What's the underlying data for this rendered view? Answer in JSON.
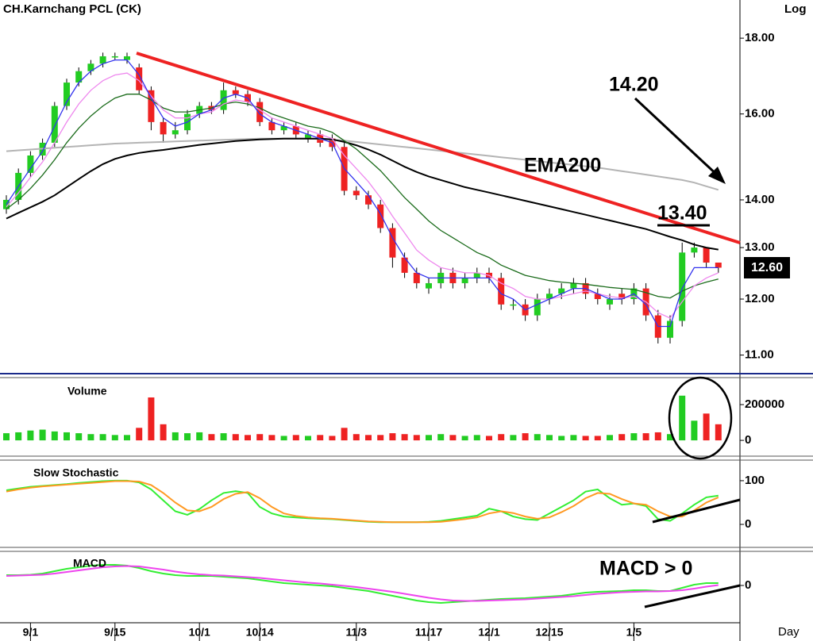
{
  "chart_data": [
    {
      "type": "candlestick",
      "title": "CH.Karnchang PCL (CK)",
      "yscale_label": "Log",
      "log_y": true,
      "ylim": [
        10.7,
        19.1
      ],
      "yticks": [
        {
          "value": 11,
          "label": "11.00"
        },
        {
          "value": 12,
          "label": "12.00"
        },
        {
          "value": 13,
          "label": "13.00"
        },
        {
          "value": 14,
          "label": "14.00"
        },
        {
          "value": 16,
          "label": "16.00"
        },
        {
          "value": 18,
          "label": "18.00"
        }
      ],
      "categories": [
        null,
        null,
        "9/1",
        null,
        null,
        null,
        null,
        null,
        null,
        "9/15",
        null,
        null,
        null,
        null,
        null,
        null,
        "10/1",
        null,
        null,
        null,
        null,
        "10/14",
        null,
        null,
        null,
        null,
        null,
        null,
        null,
        "11/3",
        null,
        null,
        null,
        null,
        null,
        "11/17",
        null,
        null,
        null,
        null,
        "12/1",
        null,
        null,
        null,
        null,
        "12/15",
        null,
        null,
        null,
        null,
        null,
        null,
        "1/5",
        null,
        null,
        null,
        null,
        null,
        null,
        null
      ],
      "up_color": "#22cc22",
      "down_color": "#ee2222",
      "open": [
        13.8,
        14.0,
        14.6,
        15.0,
        15.3,
        16.2,
        16.8,
        17.1,
        17.3,
        17.5,
        17.4,
        17.2,
        16.6,
        15.8,
        15.5,
        15.6,
        16.0,
        16.2,
        16.1,
        16.6,
        16.5,
        16.3,
        15.8,
        15.6,
        15.7,
        15.4,
        15.5,
        15.4,
        15.2,
        14.2,
        14.1,
        13.9,
        13.4,
        12.8,
        12.5,
        12.2,
        12.3,
        12.5,
        12.3,
        12.4,
        12.5,
        12.4,
        11.9,
        11.9,
        11.7,
        12.0,
        12.1,
        12.2,
        12.3,
        12.1,
        11.9,
        12.1,
        12.0,
        12.2,
        11.7,
        11.3,
        11.6,
        12.9,
        13.0,
        12.7
      ],
      "high": [
        14.1,
        14.7,
        15.1,
        15.4,
        16.3,
        16.9,
        17.2,
        17.4,
        17.6,
        17.6,
        17.6,
        17.3,
        16.7,
        15.9,
        15.8,
        16.1,
        16.3,
        16.3,
        16.8,
        16.7,
        16.6,
        16.4,
        15.9,
        15.8,
        15.8,
        15.6,
        15.6,
        15.5,
        15.3,
        14.3,
        14.2,
        14.0,
        13.5,
        12.9,
        12.6,
        12.4,
        12.6,
        12.6,
        12.5,
        12.6,
        12.6,
        12.5,
        12.0,
        12.0,
        12.1,
        12.2,
        12.3,
        12.4,
        12.4,
        12.2,
        12.1,
        12.2,
        12.3,
        12.3,
        11.8,
        11.7,
        13.1,
        13.1,
        13.0,
        12.7
      ],
      "low": [
        13.7,
        13.9,
        14.5,
        14.9,
        15.2,
        16.1,
        16.7,
        17.0,
        17.2,
        17.4,
        17.3,
        16.5,
        15.6,
        15.3,
        15.4,
        15.5,
        15.9,
        16.0,
        16.0,
        16.4,
        16.2,
        15.7,
        15.5,
        15.5,
        15.4,
        15.3,
        15.2,
        15.1,
        14.1,
        14.0,
        13.8,
        13.3,
        12.6,
        12.4,
        12.2,
        12.1,
        12.2,
        12.2,
        12.2,
        12.3,
        12.3,
        11.8,
        11.8,
        11.6,
        11.6,
        11.9,
        12.0,
        12.1,
        12.0,
        11.9,
        11.8,
        11.9,
        11.9,
        11.6,
        11.2,
        11.2,
        11.5,
        12.8,
        12.6,
        12.5
      ],
      "close": [
        14.0,
        14.6,
        15.0,
        15.3,
        16.2,
        16.8,
        17.1,
        17.3,
        17.5,
        17.5,
        17.5,
        16.6,
        15.8,
        15.5,
        15.6,
        16.0,
        16.2,
        16.1,
        16.6,
        16.5,
        16.3,
        15.8,
        15.6,
        15.7,
        15.5,
        15.5,
        15.3,
        15.2,
        14.2,
        14.1,
        13.9,
        13.4,
        12.8,
        12.5,
        12.3,
        12.3,
        12.5,
        12.3,
        12.4,
        12.5,
        12.4,
        11.9,
        11.9,
        11.7,
        12.0,
        12.1,
        12.2,
        12.3,
        12.1,
        12.0,
        12.0,
        12.0,
        12.2,
        11.7,
        11.3,
        11.6,
        12.9,
        13.0,
        12.7,
        12.6
      ],
      "series": [
        {
          "name": "EMA200",
          "color": "#b4b4b4",
          "values": [
            15.1,
            15.12,
            15.14,
            15.16,
            15.18,
            15.2,
            15.22,
            15.24,
            15.26,
            15.28,
            15.29,
            15.3,
            15.31,
            15.32,
            15.33,
            15.34,
            15.35,
            15.36,
            15.37,
            15.38,
            15.39,
            15.4,
            15.4,
            15.4,
            15.4,
            15.4,
            15.39,
            15.37,
            15.35,
            15.32,
            15.29,
            15.26,
            15.23,
            15.2,
            15.17,
            15.14,
            15.11,
            15.08,
            15.05,
            15.02,
            14.99,
            14.96,
            14.93,
            14.9,
            14.87,
            14.84,
            14.81,
            14.78,
            14.75,
            14.72,
            14.68,
            14.64,
            14.6,
            14.56,
            14.52,
            14.48,
            14.44,
            14.38,
            14.3,
            14.22
          ]
        },
        {
          "color": "#000000",
          "values": [
            13.6,
            13.72,
            13.84,
            13.96,
            14.1,
            14.28,
            14.46,
            14.64,
            14.8,
            14.92,
            15.0,
            15.06,
            15.1,
            15.13,
            15.17,
            15.21,
            15.25,
            15.28,
            15.31,
            15.34,
            15.36,
            15.38,
            15.39,
            15.4,
            15.4,
            15.4,
            15.4,
            15.38,
            15.32,
            15.24,
            15.14,
            15.02,
            14.88,
            14.74,
            14.62,
            14.52,
            14.44,
            14.36,
            14.28,
            14.22,
            14.16,
            14.1,
            14.04,
            13.98,
            13.92,
            13.86,
            13.8,
            13.74,
            13.68,
            13.62,
            13.56,
            13.5,
            13.44,
            13.38,
            13.3,
            13.22,
            13.15,
            13.06,
            13.0,
            12.96
          ]
        },
        {
          "color": "#1a6b1a",
          "values": [
            13.8,
            14.0,
            14.25,
            14.55,
            14.9,
            15.3,
            15.65,
            15.95,
            16.2,
            16.4,
            16.5,
            16.5,
            16.35,
            16.15,
            16.05,
            16.05,
            16.1,
            16.15,
            16.25,
            16.3,
            16.25,
            16.15,
            16.0,
            15.9,
            15.8,
            15.7,
            15.65,
            15.55,
            15.35,
            15.15,
            14.9,
            14.65,
            14.35,
            14.05,
            13.8,
            13.55,
            13.35,
            13.2,
            13.05,
            12.9,
            12.8,
            12.65,
            12.55,
            12.45,
            12.4,
            12.35,
            12.32,
            12.3,
            12.28,
            12.25,
            12.22,
            12.2,
            12.18,
            12.12,
            12.05,
            12.02,
            12.15,
            12.25,
            12.32,
            12.38
          ]
        },
        {
          "color": "#ee88ee",
          "values": [
            13.85,
            14.15,
            14.5,
            14.85,
            15.3,
            15.8,
            16.25,
            16.6,
            16.85,
            17.0,
            17.05,
            16.85,
            16.45,
            16.1,
            15.9,
            15.9,
            16.0,
            16.05,
            16.25,
            16.35,
            16.3,
            16.1,
            15.9,
            15.8,
            15.7,
            15.6,
            15.5,
            15.4,
            15.0,
            14.7,
            14.4,
            14.05,
            13.65,
            13.3,
            12.95,
            12.75,
            12.6,
            12.55,
            12.5,
            12.5,
            12.45,
            12.3,
            12.2,
            12.05,
            12.0,
            12.0,
            12.05,
            12.1,
            12.15,
            12.1,
            12.05,
            12.02,
            12.05,
            11.95,
            11.75,
            11.65,
            11.95,
            12.25,
            12.4,
            12.5
          ]
        },
        {
          "color": "#3333ee",
          "values": [
            13.9,
            14.3,
            14.7,
            15.1,
            15.7,
            16.3,
            16.8,
            17.1,
            17.3,
            17.4,
            17.4,
            17.0,
            16.4,
            15.9,
            15.7,
            15.8,
            16.0,
            16.1,
            16.4,
            16.5,
            16.4,
            16.0,
            15.8,
            15.7,
            15.6,
            15.5,
            15.4,
            15.3,
            14.7,
            14.4,
            14.1,
            13.7,
            13.2,
            12.8,
            12.5,
            12.4,
            12.4,
            12.4,
            12.4,
            12.4,
            12.4,
            12.1,
            12.0,
            11.8,
            11.9,
            12.0,
            12.1,
            12.2,
            12.2,
            12.1,
            12.0,
            12.0,
            12.1,
            11.9,
            11.5,
            11.5,
            12.2,
            12.6,
            12.6,
            12.6
          ]
        }
      ],
      "annotations": [
        "14.20",
        "13.40",
        "12.60"
      ]
    },
    {
      "type": "bar",
      "title": "Volume",
      "ylim": [
        -75000,
        342000
      ],
      "yticks": [
        0,
        200000
      ],
      "values": [
        40000,
        45000,
        55000,
        60000,
        50000,
        45000,
        40000,
        35000,
        35000,
        30000,
        30000,
        70000,
        240000,
        90000,
        45000,
        40000,
        45000,
        35000,
        40000,
        35000,
        30000,
        35000,
        30000,
        25000,
        30000,
        25000,
        30000,
        25000,
        70000,
        35000,
        30000,
        30000,
        40000,
        35000,
        30000,
        30000,
        35000,
        30000,
        25000,
        30000,
        25000,
        35000,
        30000,
        40000,
        35000,
        30000,
        25000,
        30000,
        25000,
        25000,
        30000,
        35000,
        40000,
        40000,
        45000,
        35000,
        250000,
        110000,
        150000,
        90000
      ]
    },
    {
      "type": "line",
      "title": "Slow Stochastic",
      "ylim": [
        -49,
        138
      ],
      "yticks": [
        0,
        100
      ],
      "series": [
        {
          "color": "#33ee33",
          "values": [
            78,
            82,
            86,
            88,
            90,
            92,
            95,
            97,
            99,
            100,
            100,
            96,
            80,
            55,
            30,
            22,
            35,
            55,
            72,
            76,
            72,
            40,
            25,
            18,
            16,
            14,
            13,
            12,
            10,
            8,
            6,
            5,
            5,
            5,
            5,
            6,
            8,
            12,
            16,
            20,
            36,
            30,
            18,
            12,
            10,
            25,
            40,
            55,
            75,
            80,
            60,
            45,
            48,
            42,
            12,
            8,
            25,
            45,
            62,
            66
          ]
        },
        {
          "color": "#ff9922",
          "values": [
            75,
            80,
            84,
            87,
            89,
            91,
            93,
            95,
            97,
            99,
            99,
            98,
            90,
            72,
            50,
            32,
            30,
            40,
            58,
            70,
            74,
            60,
            40,
            25,
            19,
            16,
            14,
            13,
            11,
            9,
            7,
            6,
            5,
            5,
            5,
            5,
            6,
            9,
            12,
            16,
            25,
            30,
            26,
            18,
            13,
            16,
            28,
            42,
            60,
            72,
            70,
            58,
            48,
            45,
            30,
            18,
            18,
            32,
            50,
            62
          ]
        }
      ]
    },
    {
      "type": "line",
      "title": "MACD",
      "xlabel": "Day",
      "ylim": [
        -0.94,
        0.76
      ],
      "yticks": [
        0
      ],
      "series": [
        {
          "color": "#33ee33",
          "values": [
            0.26,
            0.26,
            0.27,
            0.3,
            0.36,
            0.42,
            0.46,
            0.5,
            0.52,
            0.52,
            0.5,
            0.44,
            0.36,
            0.3,
            0.26,
            0.24,
            0.24,
            0.24,
            0.22,
            0.2,
            0.18,
            0.14,
            0.1,
            0.06,
            0.04,
            0.02,
            0.0,
            -0.02,
            -0.06,
            -0.1,
            -0.14,
            -0.2,
            -0.26,
            -0.32,
            -0.38,
            -0.42,
            -0.44,
            -0.42,
            -0.4,
            -0.38,
            -0.36,
            -0.34,
            -0.33,
            -0.32,
            -0.3,
            -0.28,
            -0.26,
            -0.22,
            -0.18,
            -0.16,
            -0.15,
            -0.14,
            -0.12,
            -0.12,
            -0.14,
            -0.14,
            -0.06,
            0.02,
            0.06,
            0.06
          ]
        },
        {
          "color": "#ee44ee",
          "values": [
            0.24,
            0.25,
            0.26,
            0.27,
            0.3,
            0.34,
            0.38,
            0.42,
            0.46,
            0.48,
            0.49,
            0.48,
            0.44,
            0.4,
            0.35,
            0.31,
            0.28,
            0.26,
            0.25,
            0.23,
            0.21,
            0.19,
            0.16,
            0.13,
            0.1,
            0.07,
            0.05,
            0.02,
            -0.01,
            -0.04,
            -0.08,
            -0.12,
            -0.16,
            -0.21,
            -0.26,
            -0.31,
            -0.35,
            -0.38,
            -0.39,
            -0.39,
            -0.38,
            -0.37,
            -0.36,
            -0.35,
            -0.33,
            -0.31,
            -0.29,
            -0.27,
            -0.24,
            -0.21,
            -0.19,
            -0.17,
            -0.16,
            -0.15,
            -0.15,
            -0.14,
            -0.12,
            -0.08,
            -0.03,
            0.01
          ]
        }
      ],
      "annotations": [
        "MACD > 0"
      ]
    }
  ]
}
